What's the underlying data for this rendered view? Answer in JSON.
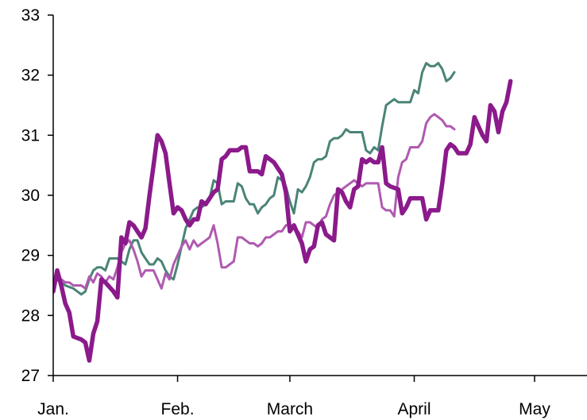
{
  "chart_data": {
    "type": "line",
    "title": "",
    "xlabel": "",
    "ylabel": "",
    "x_range": [
      0,
      150
    ],
    "ylim": [
      27,
      33
    ],
    "y_ticks": [
      27,
      28,
      29,
      30,
      31,
      32,
      33
    ],
    "x_ticks": [
      {
        "x": 0,
        "label": "Jan."
      },
      {
        "x": 31,
        "label": "Feb."
      },
      {
        "x": 59,
        "label": "March"
      },
      {
        "x": 90,
        "label": "April"
      },
      {
        "x": 120,
        "label": "May"
      }
    ],
    "grid": false,
    "legend": "none",
    "series": [
      {
        "color": "#8b1a8b",
        "values": [
          [
            0,
            28.4
          ],
          [
            1,
            28.75
          ],
          [
            2,
            28.5
          ],
          [
            3,
            28.2
          ],
          [
            4,
            28.05
          ],
          [
            5,
            27.65
          ],
          [
            7,
            27.6
          ],
          [
            8,
            27.55
          ],
          [
            9,
            27.25
          ],
          [
            10,
            27.7
          ],
          [
            11,
            27.9
          ],
          [
            12,
            28.6
          ],
          [
            13,
            28.55
          ],
          [
            15,
            28.4
          ],
          [
            16,
            28.3
          ],
          [
            17,
            29.3
          ],
          [
            18,
            29.2
          ],
          [
            19,
            29.55
          ],
          [
            20,
            29.5
          ],
          [
            22,
            29.3
          ],
          [
            23,
            29.45
          ],
          [
            24,
            30
          ],
          [
            25,
            30.5
          ],
          [
            26,
            31
          ],
          [
            27,
            30.9
          ],
          [
            28,
            30.7
          ],
          [
            29,
            30.2
          ],
          [
            30,
            29.7
          ],
          [
            31,
            29.8
          ],
          [
            32,
            29.75
          ],
          [
            33,
            29.6
          ],
          [
            34,
            29.5
          ],
          [
            35,
            29.6
          ],
          [
            36,
            29.6
          ],
          [
            37,
            29.9
          ],
          [
            38,
            29.85
          ],
          [
            39,
            29.95
          ],
          [
            40,
            30.05
          ],
          [
            41,
            30.1
          ],
          [
            42,
            30.6
          ],
          [
            43,
            30.65
          ],
          [
            44,
            30.75
          ],
          [
            45,
            30.75
          ],
          [
            46,
            30.75
          ],
          [
            47,
            30.8
          ],
          [
            48,
            30.8
          ],
          [
            49,
            30.4
          ],
          [
            50,
            30.4
          ],
          [
            51,
            30.4
          ],
          [
            52,
            30.35
          ],
          [
            53,
            30.65
          ],
          [
            54,
            30.6
          ],
          [
            55,
            30.55
          ],
          [
            56,
            30.45
          ],
          [
            57,
            30.35
          ],
          [
            58,
            30.05
          ],
          [
            59,
            29.4
          ],
          [
            60,
            29.5
          ],
          [
            61,
            29.35
          ],
          [
            62,
            29.2
          ],
          [
            63,
            28.9
          ],
          [
            64,
            29.1
          ],
          [
            65,
            29.15
          ],
          [
            66,
            29.5
          ],
          [
            67,
            29.55
          ],
          [
            68,
            29.35
          ],
          [
            69,
            29.3
          ],
          [
            70,
            29.25
          ],
          [
            71,
            30.1
          ],
          [
            72,
            30.05
          ],
          [
            73,
            29.9
          ],
          [
            74,
            29.8
          ],
          [
            75,
            30.1
          ],
          [
            76,
            30.15
          ],
          [
            77,
            30.6
          ],
          [
            78,
            30.55
          ],
          [
            79,
            30.6
          ],
          [
            80,
            30.55
          ],
          [
            81,
            30.55
          ],
          [
            82,
            30.8
          ],
          [
            83,
            30.2
          ],
          [
            84,
            30.15
          ],
          [
            86,
            30.1
          ],
          [
            87,
            29.7
          ],
          [
            88,
            29.8
          ],
          [
            89,
            29.95
          ],
          [
            92,
            29.95
          ],
          [
            93,
            29.6
          ],
          [
            94,
            29.75
          ],
          [
            96,
            29.75
          ],
          [
            97,
            30.2
          ],
          [
            98,
            30.75
          ],
          [
            99,
            30.85
          ],
          [
            100,
            30.8
          ],
          [
            101,
            30.7
          ],
          [
            103,
            30.7
          ],
          [
            104,
            30.85
          ],
          [
            105,
            31.3
          ],
          [
            106,
            31.15
          ],
          [
            107,
            31
          ],
          [
            108,
            30.9
          ],
          [
            109,
            31.5
          ],
          [
            110,
            31.4
          ],
          [
            111,
            31.05
          ],
          [
            112,
            31.4
          ],
          [
            113,
            31.55
          ],
          [
            114,
            31.9
          ]
        ]
      },
      {
        "color": "#4a8477",
        "values": [
          [
            0,
            28.5
          ],
          [
            1,
            28.6
          ],
          [
            2,
            28.55
          ],
          [
            3,
            28.5
          ],
          [
            5,
            28.45
          ],
          [
            6,
            28.4
          ],
          [
            7,
            28.35
          ],
          [
            8,
            28.4
          ],
          [
            9,
            28.6
          ],
          [
            10,
            28.75
          ],
          [
            11,
            28.8
          ],
          [
            12,
            28.8
          ],
          [
            13,
            28.75
          ],
          [
            14,
            28.95
          ],
          [
            15,
            28.95
          ],
          [
            16,
            28.95
          ],
          [
            17,
            28.9
          ],
          [
            18,
            28.85
          ],
          [
            19,
            29.1
          ],
          [
            20,
            29.25
          ],
          [
            21,
            29.25
          ],
          [
            22,
            29.05
          ],
          [
            23,
            28.95
          ],
          [
            24,
            28.85
          ],
          [
            25,
            28.85
          ],
          [
            26,
            28.95
          ],
          [
            27,
            28.9
          ],
          [
            28,
            28.75
          ],
          [
            29,
            28.65
          ],
          [
            30,
            28.6
          ],
          [
            31,
            28.85
          ],
          [
            32,
            29.15
          ],
          [
            33,
            29.45
          ],
          [
            34,
            29.6
          ],
          [
            35,
            29.75
          ],
          [
            36,
            29.8
          ],
          [
            37,
            29.8
          ],
          [
            38,
            29.85
          ],
          [
            39,
            29.95
          ],
          [
            40,
            30.25
          ],
          [
            41,
            30.2
          ],
          [
            42,
            29.85
          ],
          [
            43,
            29.9
          ],
          [
            44,
            29.9
          ],
          [
            45,
            29.9
          ],
          [
            46,
            30.2
          ],
          [
            47,
            30.15
          ],
          [
            48,
            29.95
          ],
          [
            49,
            29.85
          ],
          [
            50,
            29.85
          ],
          [
            51,
            29.7
          ],
          [
            52,
            29.8
          ],
          [
            53,
            29.85
          ],
          [
            54,
            29.95
          ],
          [
            55,
            30
          ],
          [
            56,
            30.3
          ],
          [
            57,
            30.25
          ],
          [
            58,
            30.15
          ],
          [
            59,
            29.9
          ],
          [
            60,
            29.7
          ],
          [
            61,
            30.1
          ],
          [
            62,
            30.05
          ],
          [
            63,
            30.15
          ],
          [
            64,
            30.3
          ],
          [
            65,
            30.55
          ],
          [
            66,
            30.6
          ],
          [
            67,
            30.6
          ],
          [
            68,
            30.65
          ],
          [
            69,
            30.9
          ],
          [
            70,
            30.95
          ],
          [
            71,
            30.95
          ],
          [
            72,
            31
          ],
          [
            73,
            31.1
          ],
          [
            74,
            31.05
          ],
          [
            75,
            31.05
          ],
          [
            76,
            31.05
          ],
          [
            77,
            31.05
          ],
          [
            78,
            30.75
          ],
          [
            79,
            30.7
          ],
          [
            80,
            30.8
          ],
          [
            81,
            30.75
          ],
          [
            82,
            31.15
          ],
          [
            83,
            31.5
          ],
          [
            84,
            31.55
          ],
          [
            85,
            31.6
          ],
          [
            86,
            31.55
          ],
          [
            87,
            31.55
          ],
          [
            88,
            31.55
          ],
          [
            89,
            31.55
          ],
          [
            90,
            31.75
          ],
          [
            91,
            31.7
          ],
          [
            92,
            32.05
          ],
          [
            93,
            32.2
          ],
          [
            94,
            32.15
          ],
          [
            95,
            32.15
          ],
          [
            96,
            32.2
          ],
          [
            97,
            32.1
          ],
          [
            98,
            31.9
          ],
          [
            99,
            31.95
          ],
          [
            100,
            32.05
          ]
        ]
      },
      {
        "color": "#b05ab0",
        "values": [
          [
            0,
            28.45
          ],
          [
            1,
            28.65
          ],
          [
            2,
            28.6
          ],
          [
            3,
            28.55
          ],
          [
            4,
            28.55
          ],
          [
            5,
            28.5
          ],
          [
            6,
            28.5
          ],
          [
            7,
            28.5
          ],
          [
            8,
            28.45
          ],
          [
            9,
            28.65
          ],
          [
            10,
            28.55
          ],
          [
            11,
            28.7
          ],
          [
            12,
            28.65
          ],
          [
            13,
            28.55
          ],
          [
            14,
            28.65
          ],
          [
            15,
            28.6
          ],
          [
            16,
            28.8
          ],
          [
            17,
            29.05
          ],
          [
            18,
            29.2
          ],
          [
            19,
            29.25
          ],
          [
            20,
            29.1
          ],
          [
            21,
            28.9
          ],
          [
            22,
            28.65
          ],
          [
            23,
            28.75
          ],
          [
            24,
            28.75
          ],
          [
            25,
            28.75
          ],
          [
            26,
            28.6
          ],
          [
            27,
            28.45
          ],
          [
            28,
            28.7
          ],
          [
            29,
            28.6
          ],
          [
            30,
            28.85
          ],
          [
            31,
            29
          ],
          [
            32,
            29.15
          ],
          [
            33,
            29.25
          ],
          [
            34,
            29.1
          ],
          [
            35,
            29.25
          ],
          [
            36,
            29.15
          ],
          [
            37,
            29.2
          ],
          [
            38,
            29.25
          ],
          [
            39,
            29.3
          ],
          [
            40,
            29.5
          ],
          [
            41,
            29.2
          ],
          [
            42,
            28.8
          ],
          [
            43,
            28.8
          ],
          [
            44,
            28.85
          ],
          [
            45,
            28.9
          ],
          [
            46,
            29.3
          ],
          [
            47,
            29.3
          ],
          [
            48,
            29.25
          ],
          [
            49,
            29.2
          ],
          [
            50,
            29.2
          ],
          [
            51,
            29.15
          ],
          [
            52,
            29.2
          ],
          [
            53,
            29.3
          ],
          [
            54,
            29.3
          ],
          [
            55,
            29.35
          ],
          [
            56,
            29.4
          ],
          [
            57,
            29.4
          ],
          [
            58,
            29.5
          ],
          [
            59,
            29.5
          ],
          [
            60,
            29.45
          ],
          [
            61,
            29.4
          ],
          [
            62,
            29.3
          ],
          [
            63,
            29.55
          ],
          [
            64,
            29.55
          ],
          [
            65,
            29.5
          ],
          [
            66,
            29.45
          ],
          [
            67,
            29.6
          ],
          [
            68,
            29.65
          ],
          [
            69,
            29.85
          ],
          [
            70,
            30
          ],
          [
            71,
            30.05
          ],
          [
            72,
            30.1
          ],
          [
            73,
            30.15
          ],
          [
            74,
            30.2
          ],
          [
            75,
            30.25
          ],
          [
            76,
            30.2
          ],
          [
            77,
            30.15
          ],
          [
            78,
            30.2
          ],
          [
            79,
            30.2
          ],
          [
            80,
            30.2
          ],
          [
            81,
            30.2
          ],
          [
            82,
            29.8
          ],
          [
            83,
            29.75
          ],
          [
            84,
            29.75
          ],
          [
            85,
            29.65
          ],
          [
            86,
            30.3
          ],
          [
            87,
            30.55
          ],
          [
            88,
            30.6
          ],
          [
            89,
            30.8
          ],
          [
            90,
            30.8
          ],
          [
            91,
            30.8
          ],
          [
            92,
            30.9
          ],
          [
            93,
            31.2
          ],
          [
            94,
            31.3
          ],
          [
            95,
            31.35
          ],
          [
            96,
            31.3
          ],
          [
            97,
            31.25
          ],
          [
            98,
            31.15
          ],
          [
            99,
            31.15
          ],
          [
            100,
            31.1
          ]
        ]
      }
    ]
  }
}
